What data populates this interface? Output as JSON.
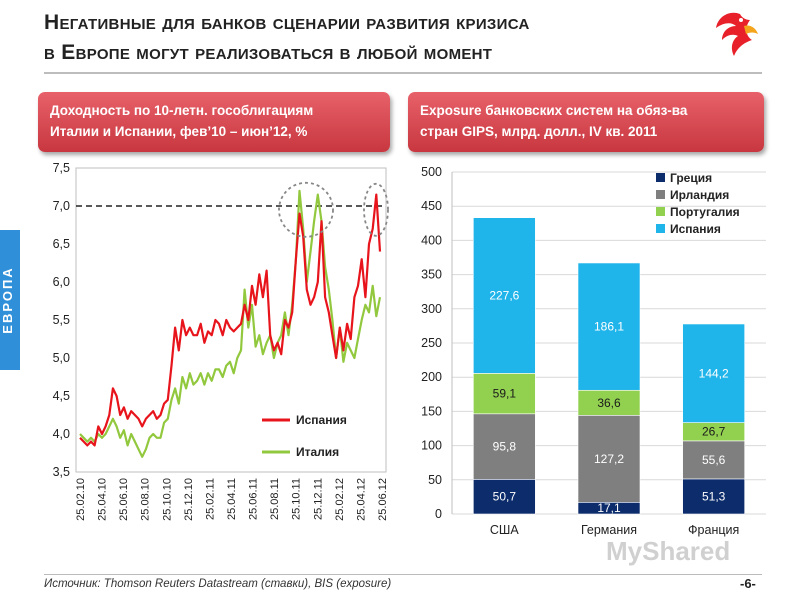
{
  "header": {
    "title_line1": "Негативные для банков сценарии развития кризиса",
    "title_line2": "в Европе могут реализоваться в любой момент"
  },
  "side_label": "ЕВРОПА",
  "left_panel": {
    "title_line1": "Доходность по 10-летн. гособлигациям",
    "title_line2": "Италии и Испании, фев’10 – июн’12, %"
  },
  "right_panel": {
    "title_line1": "Exposure банковских систем на обяз-ва",
    "title_line2": "стран GIPS, млрд. долл., IV кв. 2011"
  },
  "footer": {
    "source": "Источник: Thomson Reuters Datastream (ставки), BIS (exposure)",
    "page": "-6-"
  },
  "watermark": "MyShared",
  "colors": {
    "spain_line": "#e8141c",
    "italy_line": "#92c83e",
    "greece": "#0c2c6b",
    "ireland": "#7f7f7f",
    "portugal": "#92d050",
    "spain_bar": "#1fb4ea",
    "header_bg": "#d0454c"
  },
  "chart_data": [
    {
      "type": "line",
      "x_tick_labels": [
        "25.02.10",
        "25.04.10",
        "25.06.10",
        "25.08.10",
        "25.10.10",
        "25.12.10",
        "25.02.11",
        "25.04.11",
        "25.06.11",
        "25.08.11",
        "25.10.11",
        "25.12.11",
        "25.02.12",
        "25.04.12",
        "25.06.12"
      ],
      "ylim": [
        3.5,
        7.5
      ],
      "y_ticks": [
        "3,5",
        "4,0",
        "4,5",
        "5,0",
        "5,5",
        "6,0",
        "6,5",
        "7,0",
        "7,5"
      ],
      "reference_line": 7.0,
      "legend": [
        "Испания",
        "Италия"
      ],
      "series": [
        {
          "name": "Испания",
          "values": [
            3.95,
            3.9,
            3.85,
            3.9,
            3.85,
            4.1,
            4.0,
            4.1,
            4.25,
            4.6,
            4.5,
            4.25,
            4.35,
            4.2,
            4.3,
            4.25,
            4.2,
            4.1,
            4.2,
            4.25,
            4.3,
            4.2,
            4.25,
            4.4,
            4.45,
            4.9,
            5.4,
            5.1,
            5.5,
            5.3,
            5.4,
            5.3,
            5.3,
            5.45,
            5.2,
            5.35,
            5.3,
            5.5,
            5.45,
            5.3,
            5.5,
            5.4,
            5.35,
            5.4,
            5.45,
            5.7,
            5.5,
            5.95,
            5.7,
            6.1,
            5.8,
            6.15,
            5.3,
            5.1,
            5.2,
            5.05,
            5.5,
            5.4,
            5.6,
            6.3,
            6.9,
            6.6,
            5.9,
            5.7,
            5.8,
            6.0,
            6.8,
            5.8,
            5.6,
            5.3,
            5.0,
            5.4,
            5.1,
            5.45,
            5.25,
            5.8,
            5.95,
            6.3,
            5.8,
            6.5,
            6.7,
            7.15,
            6.4
          ]
        },
        {
          "name": "Италия",
          "values": [
            4.0,
            3.95,
            3.9,
            3.95,
            3.9,
            4.0,
            3.95,
            4.0,
            4.1,
            4.2,
            4.1,
            3.95,
            4.05,
            3.85,
            4.0,
            3.9,
            3.8,
            3.7,
            3.8,
            3.95,
            4.0,
            3.95,
            3.95,
            4.15,
            4.2,
            4.45,
            4.6,
            4.4,
            4.75,
            4.6,
            4.8,
            4.65,
            4.7,
            4.8,
            4.65,
            4.8,
            4.7,
            4.85,
            4.85,
            4.75,
            4.9,
            4.95,
            4.8,
            5.0,
            5.1,
            5.9,
            5.4,
            5.7,
            5.15,
            5.3,
            5.05,
            5.2,
            5.3,
            5.0,
            5.2,
            5.3,
            5.6,
            5.3,
            5.7,
            6.3,
            7.2,
            6.7,
            6.0,
            6.4,
            6.8,
            7.15,
            6.8,
            6.2,
            5.9,
            5.5,
            5.0,
            5.4,
            4.95,
            5.2,
            5.1,
            5.0,
            5.25,
            5.5,
            5.7,
            5.6,
            5.95,
            5.55,
            5.8
          ]
        }
      ]
    },
    {
      "type": "bar",
      "stacked": true,
      "categories": [
        "США",
        "Германия",
        "Франция"
      ],
      "ylim": [
        0,
        500
      ],
      "y_ticks": [
        "0",
        "50",
        "100",
        "150",
        "200",
        "250",
        "300",
        "350",
        "400",
        "450",
        "500"
      ],
      "series": [
        {
          "name": "Греция",
          "values": [
            50.7,
            17.1,
            51.3
          ],
          "labels": [
            "50,7",
            "17,1",
            "51,3"
          ]
        },
        {
          "name": "Ирландия",
          "values": [
            95.8,
            127.2,
            55.6
          ],
          "labels": [
            "95,8",
            "127,2",
            "55,6"
          ]
        },
        {
          "name": "Португалия",
          "values": [
            59.1,
            36.6,
            26.7
          ],
          "labels": [
            "59,1",
            "36,6",
            "26,7"
          ]
        },
        {
          "name": "Испания",
          "values": [
            227.6,
            186.1,
            144.2
          ],
          "labels": [
            "227,6",
            "186,1",
            "144,2"
          ]
        }
      ]
    }
  ]
}
